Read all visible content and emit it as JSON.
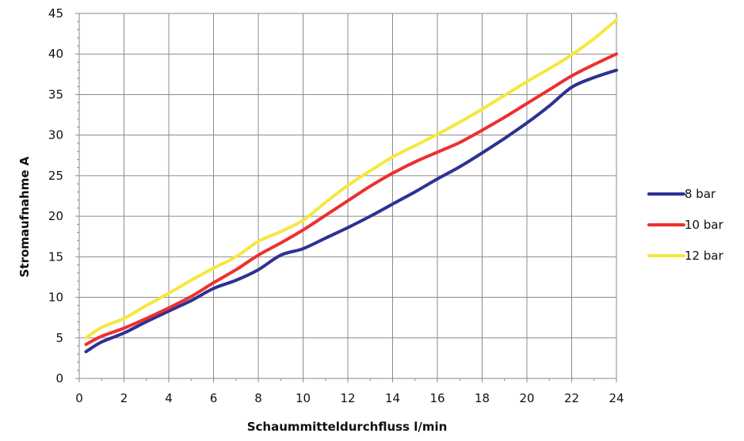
{
  "chart_data": {
    "type": "line",
    "title": "",
    "xlabel": "Schaummitteldurchfluss l/min",
    "ylabel": "Stromaufnahme A",
    "xlim": [
      0,
      24
    ],
    "ylim": [
      0,
      45
    ],
    "x_ticks": [
      "0",
      "2",
      "4",
      "6",
      "8",
      "10",
      "12",
      "14",
      "16",
      "18",
      "20",
      "22",
      "24"
    ],
    "y_ticks": [
      "0",
      "5",
      "10",
      "15",
      "20",
      "25",
      "30",
      "35",
      "40",
      "45"
    ],
    "grid": true,
    "legend_position": "right",
    "series": [
      {
        "name": "8 bar",
        "color": "#2e3192",
        "points": [
          [
            0.3,
            3.3
          ],
          [
            1,
            4.5
          ],
          [
            2,
            5.6
          ],
          [
            3,
            7.0
          ],
          [
            4,
            8.3
          ],
          [
            5,
            9.6
          ],
          [
            6,
            11.1
          ],
          [
            7,
            12.1
          ],
          [
            8,
            13.4
          ],
          [
            9,
            15.2
          ],
          [
            10,
            16.0
          ],
          [
            11,
            17.3
          ],
          [
            12,
            18.6
          ],
          [
            13,
            20.0
          ],
          [
            14,
            21.5
          ],
          [
            15,
            23.0
          ],
          [
            16,
            24.6
          ],
          [
            17,
            26.1
          ],
          [
            18,
            27.8
          ],
          [
            19,
            29.6
          ],
          [
            20,
            31.5
          ],
          [
            21,
            33.6
          ],
          [
            22,
            35.9
          ],
          [
            23,
            37.1
          ],
          [
            24,
            38.0
          ]
        ]
      },
      {
        "name": "10 bar",
        "color": "#ee2f2f",
        "points": [
          [
            0.3,
            4.2
          ],
          [
            1,
            5.2
          ],
          [
            2,
            6.2
          ],
          [
            3,
            7.4
          ],
          [
            4,
            8.7
          ],
          [
            5,
            10.1
          ],
          [
            6,
            11.8
          ],
          [
            7,
            13.4
          ],
          [
            8,
            15.2
          ],
          [
            9,
            16.7
          ],
          [
            10,
            18.3
          ],
          [
            11,
            20.1
          ],
          [
            12,
            21.9
          ],
          [
            13,
            23.7
          ],
          [
            14,
            25.3
          ],
          [
            15,
            26.7
          ],
          [
            16,
            27.9
          ],
          [
            17,
            29.1
          ],
          [
            18,
            30.6
          ],
          [
            19,
            32.2
          ],
          [
            20,
            33.9
          ],
          [
            21,
            35.6
          ],
          [
            22,
            37.3
          ],
          [
            23,
            38.7
          ],
          [
            24,
            40.0
          ]
        ]
      },
      {
        "name": "12 bar",
        "color": "#f5e83e",
        "points": [
          [
            0.3,
            5.0
          ],
          [
            1,
            6.3
          ],
          [
            2,
            7.4
          ],
          [
            3,
            9.0
          ],
          [
            4,
            10.5
          ],
          [
            5,
            12.1
          ],
          [
            6,
            13.6
          ],
          [
            7,
            15.0
          ],
          [
            8,
            16.9
          ],
          [
            9,
            18.1
          ],
          [
            10,
            19.5
          ],
          [
            11,
            21.7
          ],
          [
            12,
            23.8
          ],
          [
            13,
            25.6
          ],
          [
            14,
            27.3
          ],
          [
            15,
            28.7
          ],
          [
            16,
            30.1
          ],
          [
            17,
            31.6
          ],
          [
            18,
            33.2
          ],
          [
            19,
            34.9
          ],
          [
            20,
            36.6
          ],
          [
            21,
            38.2
          ],
          [
            22,
            39.9
          ],
          [
            23,
            41.9
          ],
          [
            24,
            44.2
          ]
        ]
      }
    ]
  }
}
